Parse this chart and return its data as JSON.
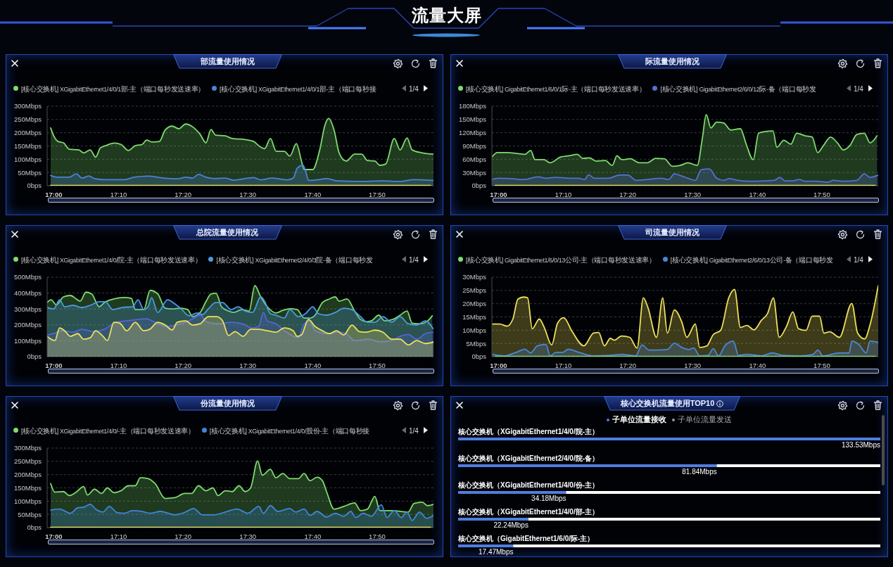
{
  "chart_data": [
    {
      "type": "other",
      "title": "流量大屏"
    },
    {
      "type": "area",
      "title": "部流量使用情况",
      "legend": "top",
      "grid": "y",
      "annotations": [
        "1/4"
      ],
      "xlim": [
        16.983,
        17.978
      ],
      "xticks": [
        {
          "value": 17,
          "label": "17:00"
        },
        {
          "value": 17.167,
          "label": "17:10"
        },
        {
          "value": 17.333,
          "label": "17:20"
        },
        {
          "value": 17.5,
          "label": "17:30"
        },
        {
          "value": 17.667,
          "label": "17:40"
        },
        {
          "value": 17.833,
          "label": "17:50"
        }
      ],
      "ylim": [
        0,
        300
      ],
      "yticks": [
        {
          "value": 0,
          "label": "0bps"
        },
        {
          "value": 50,
          "label": "50Mbps"
        },
        {
          "value": 100,
          "label": "100Mbps"
        },
        {
          "value": 150,
          "label": "150Mbps"
        },
        {
          "value": 200,
          "label": "200Mbps"
        },
        {
          "value": 250,
          "label": "250Mbps"
        },
        {
          "value": 300,
          "label": "300Mbps"
        }
      ],
      "series": [
        {
          "name": "[核心交换机] XGigabitEthernet1/4/0/1部-主（端口每秒发送速率）",
          "color": "#7ddc6e",
          "x": [
            16.992,
            17,
            17.011,
            17.025,
            17.04,
            17.065,
            17.077,
            17.094,
            17.108,
            17.12,
            17.133,
            17.156,
            17.173,
            17.192,
            17.21,
            17.228,
            17.239,
            17.253,
            17.272,
            17.287,
            17.305,
            17.322,
            17.34,
            17.358,
            17.377,
            17.392,
            17.405,
            17.417,
            17.442,
            17.46,
            17.493,
            17.515,
            17.528,
            17.543,
            17.558,
            17.573,
            17.594,
            17.608,
            17.625,
            17.638,
            17.645,
            17.667,
            17.685,
            17.699,
            17.708,
            17.722,
            17.735,
            17.753,
            17.775,
            17.793,
            17.808,
            17.827,
            17.84,
            17.855,
            17.877,
            17.892,
            17.91,
            17.923,
            17.949,
            17.978
          ],
          "values": [
            218,
            188,
            167,
            162,
            138,
            135,
            124,
            135,
            108,
            143,
            151,
            161,
            156,
            133,
            151,
            156,
            172,
            165,
            167,
            210,
            225,
            215,
            233,
            222,
            194,
            162,
            212,
            191,
            188,
            178,
            174,
            167,
            151,
            140,
            178,
            130,
            130,
            112,
            159,
            93,
            61,
            61,
            135,
            231,
            254,
            210,
            124,
            93,
            119,
            119,
            95,
            93,
            77,
            82,
            178,
            135,
            180,
            135,
            124,
            119
          ]
        },
        {
          "name": "[核心交换机] XGigabitEthernet1/4/0/1部-主（端口每秒接",
          "color": "#4a83d9",
          "x": [
            16.992,
            17.011,
            17.04,
            17.058,
            17.073,
            17.09,
            17.105,
            17.13,
            17.182,
            17.207,
            17.243,
            17.283,
            17.318,
            17.34,
            17.358,
            17.373,
            17.392,
            17.417,
            17.442,
            17.463,
            17.515,
            17.533,
            17.562,
            17.602,
            17.617,
            17.627,
            17.642,
            17.65,
            17.656,
            17.682,
            17.703,
            17.732,
            17.783,
            17.848,
            17.892,
            17.927,
            17.978
          ],
          "values": [
            39,
            32,
            32,
            45,
            29,
            37,
            27,
            23,
            23,
            32,
            36,
            29,
            26,
            32,
            29,
            43,
            32,
            27,
            29,
            21,
            31,
            22,
            29,
            22,
            29,
            66,
            77,
            50,
            20,
            23,
            27,
            18,
            16,
            18,
            16,
            23,
            20
          ]
        },
        {
          "type": "line",
          "color": "#eee05a",
          "x": [
            16.992,
            17.97
          ],
          "values": [
            0,
            0
          ]
        }
      ]
    },
    {
      "type": "area",
      "title": "际流量使用情况",
      "legend": "top",
      "grid": "y",
      "annotations": [
        "1/4"
      ],
      "xlim": [
        16.983,
        17.978
      ],
      "xticks": [
        {
          "value": 17,
          "label": "17:00"
        },
        {
          "value": 17.167,
          "label": "17:10"
        },
        {
          "value": 17.333,
          "label": "17:20"
        },
        {
          "value": 17.5,
          "label": "17:30"
        },
        {
          "value": 17.667,
          "label": "17:40"
        },
        {
          "value": 17.833,
          "label": "17:50"
        }
      ],
      "ylim": [
        0,
        180
      ],
      "yticks": [
        {
          "value": 0,
          "label": "0bps"
        },
        {
          "value": 30,
          "label": "30Mbps"
        },
        {
          "value": 60,
          "label": "60Mbps"
        },
        {
          "value": 90,
          "label": "90Mbps"
        },
        {
          "value": 120,
          "label": "120Mbps"
        },
        {
          "value": 150,
          "label": "150Mbps"
        },
        {
          "value": 180,
          "label": "180Mbps"
        }
      ],
      "series": [
        {
          "name": "[核心交换机] GigabitEthernet1/6/0/1际-主（端口每秒发送速率）",
          "color": "#7ddc6e",
          "x": [
            16.983,
            16.997,
            17.022,
            17.047,
            17.068,
            17.083,
            17.094,
            17.117,
            17.133,
            17.16,
            17.182,
            17.203,
            17.217,
            17.235,
            17.25,
            17.275,
            17.293,
            17.305,
            17.318,
            17.34,
            17.362,
            17.383,
            17.405,
            17.427,
            17.448,
            17.468,
            17.488,
            17.512,
            17.525,
            17.535,
            17.547,
            17.562,
            17.58,
            17.598,
            17.623,
            17.638,
            17.656,
            17.67,
            17.688,
            17.707,
            17.717,
            17.735,
            17.753,
            17.768,
            17.79,
            17.808,
            17.822,
            17.837,
            17.855,
            17.873,
            17.888,
            17.905,
            17.923,
            17.942,
            17.957,
            17.975
          ],
          "values": [
            65,
            75,
            75,
            73,
            71,
            80,
            59,
            59,
            52,
            65,
            68,
            71,
            62,
            63,
            56,
            57,
            46,
            68,
            59,
            61,
            52,
            52,
            62,
            61,
            44,
            46,
            52,
            46,
            107,
            161,
            131,
            144,
            142,
            126,
            129,
            94,
            59,
            119,
            123,
            124,
            87,
            103,
            94,
            119,
            113,
            110,
            75,
            91,
            110,
            97,
            81,
            91,
            116,
            119,
            97,
            113
          ]
        },
        {
          "name": "[核心交换机] GigabitEthernet2/6/0/12际-备（端口每秒发",
          "color": "#5470d6",
          "x": [
            16.983,
            17,
            17.033,
            17.065,
            17.102,
            17.123,
            17.148,
            17.182,
            17.207,
            17.222,
            17.232,
            17.247,
            17.283,
            17.312,
            17.333,
            17.355,
            17.383,
            17.42,
            17.438,
            17.453,
            17.472,
            17.488,
            17.507,
            17.522,
            17.543,
            17.562,
            17.58,
            17.594,
            17.617,
            17.645,
            17.688,
            17.71,
            17.725,
            17.738,
            17.757,
            17.775,
            17.79,
            17.818,
            17.848,
            17.862,
            17.892,
            17.923,
            17.942,
            17.957,
            17.978
          ],
          "values": [
            14,
            17,
            16,
            14,
            20,
            17,
            19,
            17,
            17,
            14,
            25,
            17,
            17,
            24,
            24,
            12,
            14,
            17,
            14,
            27,
            22,
            17,
            12,
            36,
            38,
            17,
            12,
            16,
            12,
            10,
            11,
            12,
            19,
            11,
            11,
            14,
            10,
            10,
            8,
            12,
            10,
            12,
            27,
            19,
            24
          ]
        },
        {
          "type": "line",
          "color": "#eee05a",
          "x": [
            16.992,
            17.97
          ],
          "values": [
            0,
            0
          ]
        }
      ]
    },
    {
      "type": "area",
      "title": "总院流量使用情况",
      "legend": "top",
      "grid": "y",
      "annotations": [
        "1/4"
      ],
      "xlim": [
        16.983,
        17.978
      ],
      "xticks": [
        {
          "value": 17,
          "label": "17:00"
        },
        {
          "value": 17.167,
          "label": "17:10"
        },
        {
          "value": 17.333,
          "label": "17:20"
        },
        {
          "value": 17.5,
          "label": "17:30"
        },
        {
          "value": 17.667,
          "label": "17:40"
        },
        {
          "value": 17.833,
          "label": "17:50"
        }
      ],
      "ylim": [
        0,
        500
      ],
      "yticks": [
        {
          "value": 0,
          "label": "0bps"
        },
        {
          "value": 100,
          "label": "100Mbps"
        },
        {
          "value": 200,
          "label": "200Mbps"
        },
        {
          "value": 300,
          "label": "300Mbps"
        },
        {
          "value": 400,
          "label": "400Mbps"
        },
        {
          "value": 500,
          "label": "500Mbps"
        }
      ],
      "series": [
        {
          "name": "[核心交换机] XGigabitEthernet1/4/0/院-主（端口每秒发送速率）",
          "color": "#7ddc6e",
          "x": [
            16.983,
            16.993,
            17.007,
            17.025,
            17.043,
            17.058,
            17.068,
            17.083,
            17.098,
            17.117,
            17.13,
            17.155,
            17.182,
            17.2,
            17.21,
            17.232,
            17.248,
            17.268,
            17.287,
            17.305,
            17.327,
            17.345,
            17.358,
            17.377,
            17.392,
            17.405,
            17.418,
            17.432,
            17.45,
            17.463,
            17.485,
            17.503,
            17.518,
            17.533,
            17.55,
            17.572,
            17.59,
            17.608,
            17.627,
            17.645,
            17.66,
            17.673,
            17.692,
            17.71,
            17.725,
            17.735,
            17.755,
            17.775,
            17.79,
            17.805,
            17.818,
            17.837,
            17.852,
            17.873,
            17.892,
            17.91,
            17.923,
            17.945,
            17.963,
            17.975
          ],
          "values": [
            340,
            358,
            326,
            376,
            385,
            363,
            349,
            406,
            394,
            314,
            340,
            363,
            372,
            367,
            296,
            296,
            417,
            394,
            305,
            300,
            305,
            296,
            252,
            278,
            346,
            394,
            399,
            314,
            287,
            278,
            296,
            287,
            447,
            376,
            314,
            275,
            291,
            301,
            296,
            243,
            243,
            261,
            340,
            363,
            376,
            349,
            363,
            287,
            234,
            220,
            225,
            261,
            225,
            234,
            261,
            287,
            211,
            207,
            225,
            257
          ]
        },
        {
          "name": "[核心交换机] XGigabitEthernet2/4/0/3院-备（端口每秒发",
          "color": "#4a9be0",
          "x": [
            16.983,
            17,
            17.015,
            17.028,
            17.05,
            17.072,
            17.094,
            17.117,
            17.133,
            17.152,
            17.178,
            17.203,
            17.217,
            17.232,
            17.243,
            17.252,
            17.268,
            17.293,
            17.312,
            17.33,
            17.348,
            17.37,
            17.383,
            17.398,
            17.417,
            17.435,
            17.457,
            17.475,
            17.493,
            17.512,
            17.533,
            17.543,
            17.558,
            17.572,
            17.594,
            17.608,
            17.63,
            17.648,
            17.667,
            17.682,
            17.703,
            17.725,
            17.747,
            17.768,
            17.79,
            17.808,
            17.827,
            17.848,
            17.87,
            17.892,
            17.913,
            17.935,
            17.957,
            17.978
          ],
          "values": [
            310,
            300,
            358,
            314,
            323,
            309,
            323,
            346,
            346,
            296,
            310,
            314,
            358,
            296,
            314,
            371,
            278,
            358,
            332,
            296,
            257,
            275,
            264,
            300,
            340,
            340,
            296,
            314,
            287,
            278,
            376,
            349,
            270,
            261,
            243,
            296,
            252,
            270,
            314,
            270,
            261,
            278,
            305,
            296,
            252,
            216,
            216,
            252,
            216,
            252,
            207,
            199,
            225,
            172
          ]
        },
        {
          "color": "#5466d6",
          "x": [
            16.983,
            17,
            17.022,
            17.05,
            17.072,
            17.102,
            17.13,
            17.16,
            17.188,
            17.217,
            17.238,
            17.261,
            17.29,
            17.327,
            17.355,
            17.377,
            17.395,
            17.428,
            17.457,
            17.485,
            17.511,
            17.528,
            17.54,
            17.55,
            17.572,
            17.594,
            17.617,
            17.63,
            17.645,
            17.66,
            17.673,
            17.703,
            17.732,
            17.753,
            17.775,
            17.812,
            17.84,
            17.87,
            17.892,
            17.913,
            17.935,
            17.957,
            17.978
          ],
          "values": [
            137,
            145,
            163,
            154,
            172,
            158,
            172,
            216,
            225,
            234,
            238,
            216,
            190,
            207,
            234,
            261,
            216,
            207,
            216,
            207,
            181,
            190,
            278,
            225,
            207,
            163,
            128,
            119,
            207,
            225,
            163,
            145,
            154,
            145,
            101,
            110,
            92,
            101,
            128,
            140,
            110,
            145,
            154
          ]
        },
        {
          "color": "#eee05a",
          "x": [
            16.983,
            16.993,
            17.003,
            17.015,
            17.028,
            17.043,
            17.062,
            17.077,
            17.094,
            17.108,
            17.127,
            17.138,
            17.155,
            17.17,
            17.188,
            17.21,
            17.232,
            17.247,
            17.268,
            17.287,
            17.305,
            17.318,
            17.34,
            17.358,
            17.377,
            17.398,
            17.42,
            17.435,
            17.45,
            17.467,
            17.488,
            17.507,
            17.528,
            17.55,
            17.572,
            17.594,
            17.617,
            17.627,
            17.638,
            17.656,
            17.673,
            17.692,
            17.71,
            17.728,
            17.747,
            17.768,
            17.787,
            17.805,
            17.827,
            17.848,
            17.87,
            17.892,
            17.913,
            17.935,
            17.957,
            17.978
          ],
          "values": [
            128,
            110,
            101,
            181,
            163,
            128,
            145,
            110,
            119,
            163,
            128,
            101,
            216,
            211,
            163,
            216,
            163,
            172,
            216,
            199,
            168,
            216,
            225,
            199,
            207,
            252,
            252,
            225,
            133,
            158,
            128,
            172,
            172,
            163,
            154,
            181,
            163,
            128,
            137,
            234,
            190,
            163,
            145,
            163,
            137,
            199,
            158,
            154,
            167,
            154,
            110,
            110,
            74,
            101,
            83,
            92
          ]
        }
      ]
    },
    {
      "type": "area",
      "title": "司流量使用情况",
      "legend": "top",
      "grid": "y",
      "annotations": [
        "1/4"
      ],
      "xlim": [
        16.983,
        17.978
      ],
      "xticks": [
        {
          "value": 17,
          "label": "17:00"
        },
        {
          "value": 17.167,
          "label": "17:10"
        },
        {
          "value": 17.333,
          "label": "17:20"
        },
        {
          "value": 17.5,
          "label": "17:30"
        },
        {
          "value": 17.667,
          "label": "17:40"
        },
        {
          "value": 17.833,
          "label": "17:50"
        }
      ],
      "ylim": [
        0,
        30
      ],
      "yticks": [
        {
          "value": 0,
          "label": "0bps"
        },
        {
          "value": 5,
          "label": "5Mbps"
        },
        {
          "value": 10,
          "label": "10Mbps"
        },
        {
          "value": 15,
          "label": "15Mbps"
        },
        {
          "value": 20,
          "label": "20Mbps"
        },
        {
          "value": 25,
          "label": "25Mbps"
        },
        {
          "value": 30,
          "label": "30Mbps"
        }
      ],
      "series": [
        {
          "type": "line",
          "name": "[核心交换机] GigabitEthernet1/6/0/13公司-主（端口每秒发送速率）",
          "color": "#7ddc6e",
          "x": [
            16.992,
            17.97
          ],
          "values": [
            0,
            0
          ]
        },
        {
          "color": "#eee05a",
          "x": [
            16.983,
            17.003,
            17.022,
            17.037,
            17.05,
            17.065,
            17.075,
            17.087,
            17.105,
            17.118,
            17.137,
            17.152,
            17.168,
            17.19,
            17.22,
            17.245,
            17.258,
            17.273,
            17.288,
            17.298,
            17.317,
            17.338,
            17.357,
            17.373,
            17.385,
            17.407,
            17.423,
            17.435,
            17.453,
            17.472,
            17.485,
            17.507,
            17.518,
            17.537,
            17.553,
            17.572,
            17.593,
            17.608,
            17.623,
            17.64,
            17.658,
            17.677,
            17.693,
            17.708,
            17.723,
            17.742,
            17.758,
            17.773,
            17.792,
            17.808,
            17.827,
            17.838,
            17.853,
            17.878,
            17.91,
            17.925,
            17.943,
            17.957,
            17.978
          ],
          "values": [
            12.3,
            12.3,
            11.5,
            14.2,
            21.7,
            22.5,
            22.2,
            10.5,
            14.2,
            11,
            4.4,
            12.6,
            14.7,
            9.4,
            4.1,
            8.9,
            9.1,
            4.1,
            6.9,
            6.2,
            7.8,
            7.3,
            3.2,
            22.2,
            18.5,
            7.3,
            22.2,
            8.9,
            17.6,
            13.1,
            7.3,
            12.3,
            3.5,
            4.1,
            8.3,
            9.9,
            22.2,
            25.4,
            11,
            11.8,
            10.1,
            13.7,
            16.3,
            22.2,
            7.3,
            11.5,
            16.9,
            10.5,
            9.9,
            15.3,
            15.3,
            8.9,
            9.4,
            7.3,
            20.1,
            8.9,
            6.7,
            12.1,
            26.8
          ]
        },
        {
          "name": "[核心交换机] GigabitEthernet2/6/0/13公司-备（端口每秒发",
          "color": "#4a86d8",
          "x": [
            16.983,
            17.015,
            17.05,
            17.068,
            17.083,
            17.1,
            17.122,
            17.133,
            17.148,
            17.165,
            17.18,
            17.202,
            17.223,
            17.245,
            17.288,
            17.317,
            17.353,
            17.37,
            17.388,
            17.407,
            17.435,
            17.453,
            17.472,
            17.49,
            17.503,
            17.518,
            17.54,
            17.553,
            17.567,
            17.583,
            17.605,
            17.618,
            17.64,
            17.677,
            17.705,
            17.733,
            17.777,
            17.81,
            17.823,
            17.835,
            17.878,
            17.903,
            17.91,
            17.928,
            17.947,
            17.957,
            17.978
          ],
          "values": [
            0.9,
            0.3,
            1.9,
            2.8,
            1.4,
            4.1,
            4.6,
            0.3,
            1.6,
            1.6,
            2.8,
            1.9,
            0.9,
            0.3,
            0.5,
            0.9,
            0.3,
            4.4,
            2.5,
            2.5,
            2.7,
            5.1,
            3.5,
            2.7,
            3.3,
            0.3,
            0.5,
            3,
            0.3,
            4.1,
            5.9,
            0.5,
            0.9,
            0.3,
            1.4,
            0.5,
            0.3,
            0.9,
            2.5,
            0.3,
            1.4,
            1.4,
            5.9,
            4.6,
            1.4,
            5.9,
            5.4
          ]
        }
      ]
    },
    {
      "type": "area",
      "title": "份流量使用情况",
      "legend": "top",
      "grid": "y",
      "annotations": [
        "1/4"
      ],
      "xlim": [
        16.983,
        17.978
      ],
      "xticks": [
        {
          "value": 17,
          "label": "17:00"
        },
        {
          "value": 17.167,
          "label": "17:10"
        },
        {
          "value": 17.333,
          "label": "17:20"
        },
        {
          "value": 17.5,
          "label": "17:30"
        },
        {
          "value": 17.667,
          "label": "17:40"
        },
        {
          "value": 17.833,
          "label": "17:50"
        }
      ],
      "ylim": [
        0,
        300
      ],
      "yticks": [
        {
          "value": 0,
          "label": "0bps"
        },
        {
          "value": 50,
          "label": "50Mbps"
        },
        {
          "value": 100,
          "label": "100Mbps"
        },
        {
          "value": 150,
          "label": "150Mbps"
        },
        {
          "value": 200,
          "label": "200Mbps"
        },
        {
          "value": 250,
          "label": "250Mbps"
        },
        {
          "value": 300,
          "label": "300Mbps"
        }
      ],
      "series": [
        {
          "name": "[核心交换机] XGigabitEthernet1/4/0/-主（端口每秒发送速率）",
          "color": "#7ddc6e",
          "x": [
            16.992,
            17.003,
            17.025,
            17.04,
            17.058,
            17.077,
            17.087,
            17.105,
            17.123,
            17.138,
            17.155,
            17.173,
            17.192,
            17.21,
            17.223,
            17.243,
            17.261,
            17.287,
            17.312,
            17.337,
            17.355,
            17.373,
            17.392,
            17.41,
            17.423,
            17.442,
            17.46,
            17.477,
            17.493,
            17.507,
            17.525,
            17.537,
            17.558,
            17.572,
            17.59,
            17.608,
            17.63,
            17.645,
            17.66,
            17.678,
            17.692,
            17.703,
            17.722,
            17.747,
            17.775,
            17.79,
            17.808,
            17.827,
            17.84,
            17.87,
            17.913,
            17.928,
            17.949,
            17.963,
            17.978
          ],
          "values": [
            166,
            134,
            136,
            121,
            134,
            155,
            123,
            145,
            129,
            150,
            132,
            139,
            158,
            158,
            188,
            185,
            166,
            110,
            113,
            129,
            129,
            158,
            139,
            150,
            121,
            139,
            136,
            158,
            136,
            150,
            252,
            198,
            220,
            188,
            204,
            185,
            185,
            204,
            177,
            190,
            177,
            134,
            70,
            80,
            93,
            64,
            70,
            118,
            64,
            64,
            59,
            91,
            96,
            83,
            88
          ]
        },
        {
          "name": "[核心交换机] XGigabitEthernet1/4/0/股份-主（端口每秒接",
          "color": "#3f86d8",
          "x": [
            16.992,
            17.015,
            17.043,
            17.062,
            17.077,
            17.094,
            17.108,
            17.127,
            17.143,
            17.163,
            17.182,
            17.203,
            17.228,
            17.247,
            17.275,
            17.312,
            17.34,
            17.36,
            17.383,
            17.413,
            17.442,
            17.472,
            17.5,
            17.528,
            17.54,
            17.558,
            17.577,
            17.608,
            17.623,
            17.645,
            17.66,
            17.678,
            17.703,
            17.725,
            17.747,
            17.765,
            17.778,
            17.797,
            17.818,
            17.844,
            17.858,
            17.877,
            17.895,
            17.91,
            17.923,
            17.942,
            17.96,
            17.978
          ],
          "values": [
            66,
            70,
            54,
            75,
            77,
            88,
            70,
            59,
            80,
            57,
            54,
            64,
            61,
            54,
            61,
            48,
            59,
            72,
            48,
            48,
            59,
            70,
            54,
            80,
            54,
            83,
            61,
            72,
            59,
            70,
            46,
            61,
            40,
            54,
            43,
            61,
            38,
            54,
            43,
            86,
            38,
            64,
            38,
            59,
            27,
            59,
            35,
            46
          ]
        },
        {
          "type": "line",
          "color": "#eee05a",
          "x": [
            16.992,
            17.97
          ],
          "values": [
            0,
            0
          ]
        }
      ]
    },
    {
      "type": "bar",
      "orientation": "horizontal",
      "title": "核心交换机流量使用TOP10",
      "legend": "top",
      "categories": [
        "核心交换机（XGigabitEthernet1/4/0/院-主）",
        "核心交换机（XGigabitEthernet2/4/0/院-备）",
        "核心交换机（XGigabitEthernet1/4/0/份-主）",
        "核心交换机（XGigabitEthernet1/4/0/部-主）",
        "核心交换机（GigabitEthernet1/6/0/际-主）"
      ],
      "series": [
        {
          "name": "子单位流量接收",
          "color": "#4f7de0",
          "values": [
            133.53,
            81.84,
            34.18,
            22.24,
            17.47
          ],
          "value_labels": [
            "133.53Mbps",
            "81.84Mbps",
            "34.18Mbps",
            "22.24Mbps",
            "17.47Mbps"
          ]
        },
        {
          "name": "子单位流量发送",
          "color": "#9a9a9a",
          "values": [
            null,
            null,
            null,
            null,
            null
          ]
        }
      ]
    }
  ]
}
